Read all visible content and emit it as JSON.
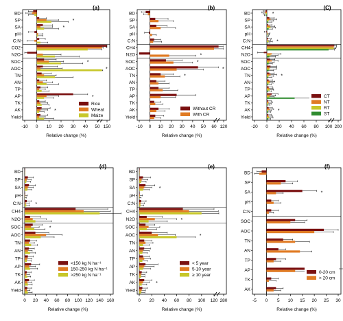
{
  "chart_data": [
    {
      "panel": "(a)",
      "type": "bar",
      "categories": [
        "BD",
        "SP",
        "SA",
        "pH",
        "C:N",
        "CO2",
        "N2O",
        "SOC",
        "AOC",
        "TN",
        "AN",
        "TP",
        "AP",
        "TK",
        "AK",
        "Yield"
      ],
      "series": [
        {
          "name": "Rice",
          "color": "#7a1010",
          "values": [
            -3,
            2,
            5,
            -2,
            2,
            150,
            -8,
            6,
            5,
            4,
            2,
            3,
            30,
            2,
            4,
            3
          ],
          "errors": [
            4,
            6,
            8,
            5,
            5,
            12,
            10,
            10,
            12,
            8,
            6,
            6,
            12,
            5,
            7,
            6
          ]
        },
        {
          "name": "Wheat",
          "color": "#e07b24",
          "values": [
            -4,
            8,
            3,
            1,
            -2,
            60,
            5,
            10,
            3,
            6,
            5,
            2,
            8,
            3,
            3,
            2
          ],
          "errors": [
            5,
            10,
            10,
            4,
            6,
            20,
            15,
            12,
            18,
            10,
            8,
            5,
            10,
            6,
            6,
            5
          ]
        },
        {
          "name": "Maize",
          "color": "#c7c72a",
          "values": [
            -2,
            12,
            6,
            1,
            3,
            42,
            15,
            20,
            58,
            15,
            8,
            4,
            6,
            4,
            2,
            6
          ],
          "errors": [
            5,
            14,
            12,
            4,
            6,
            15,
            20,
            18,
            15,
            15,
            10,
            6,
            8,
            6,
            4,
            8
          ]
        }
      ],
      "xticks": [
        "-10",
        "0",
        "10",
        "20",
        "30",
        "40",
        "50",
        "150"
      ],
      "stars": [
        "SP",
        "SA",
        "CO2",
        "SOC",
        "AOC",
        "AP",
        "AK"
      ]
    },
    {
      "panel": "(b)",
      "type": "bar",
      "categories": [
        "BD",
        "SP",
        "SA",
        "pH",
        "C:N",
        "CH4",
        "N2O",
        "SOC",
        "AOC",
        "TN",
        "AN",
        "TP",
        "AP",
        "TK",
        "AK",
        "Yield"
      ],
      "series": [
        {
          "name": "Without CR",
          "color": "#7a1010",
          "values": [
            -4,
            5,
            6,
            -1,
            4,
            65,
            -20,
            15,
            45,
            10,
            6,
            8,
            25,
            4,
            8,
            5
          ],
          "errors": [
            4,
            12,
            10,
            4,
            6,
            50,
            20,
            15,
            18,
            12,
            8,
            10,
            18,
            6,
            10,
            8
          ]
        },
        {
          "name": "With CR",
          "color": "#e07b24",
          "values": [
            -2,
            8,
            10,
            2,
            3,
            60,
            18,
            22,
            25,
            14,
            8,
            12,
            10,
            5,
            6,
            4
          ],
          "errors": [
            4,
            14,
            14,
            4,
            8,
            55,
            25,
            18,
            25,
            14,
            10,
            14,
            14,
            7,
            8,
            6
          ]
        }
      ],
      "xticks": [
        "-10",
        "0",
        "10",
        "20",
        "30",
        "40",
        "50",
        "60",
        "120"
      ],
      "stars": [
        "N2O",
        "SOC",
        "AOC",
        "TN"
      ]
    },
    {
      "panel": "(C)",
      "type": "bar",
      "categories": [
        "BD",
        "SP",
        "SA",
        "pH",
        "C:N",
        "CH4",
        "N2O",
        "SOC",
        "AOC",
        "TN",
        "AN",
        "TP",
        "AP",
        "TK",
        "AK",
        "Yield"
      ],
      "series": [
        {
          "name": "CT",
          "color": "#7a1010",
          "values": [
            -2,
            4,
            2,
            -1,
            2,
            130,
            -5,
            5,
            6,
            4,
            3,
            3,
            8,
            2,
            3,
            2
          ],
          "errors": [
            4,
            8,
            6,
            3,
            5,
            40,
            10,
            8,
            10,
            8,
            6,
            6,
            10,
            5,
            6,
            5
          ]
        },
        {
          "name": "NT",
          "color": "#e07b24",
          "values": [
            -3,
            6,
            5,
            1,
            1,
            120,
            8,
            8,
            4,
            6,
            5,
            4,
            6,
            3,
            5,
            3
          ],
          "errors": [
            5,
            10,
            8,
            4,
            5,
            45,
            15,
            10,
            12,
            10,
            8,
            6,
            8,
            6,
            6,
            6
          ]
        },
        {
          "name": "RT",
          "color": "#c7c72a",
          "values": [
            -2,
            3,
            6,
            1,
            3,
            118,
            6,
            4,
            5,
            3,
            4,
            5,
            4,
            2,
            2,
            4
          ],
          "errors": [
            4,
            8,
            8,
            3,
            6,
            40,
            12,
            8,
            10,
            8,
            6,
            6,
            8,
            5,
            5,
            6
          ]
        },
        {
          "name": "ST",
          "color": "#2e8b2e",
          "values": [
            -1,
            2,
            3,
            0,
            1,
            100,
            4,
            3,
            3,
            2,
            2,
            2,
            45,
            1,
            2,
            2
          ],
          "errors": [
            3,
            6,
            6,
            3,
            4,
            35,
            10,
            6,
            8,
            6,
            5,
            5,
            25,
            4,
            4,
            4
          ]
        }
      ],
      "xticks": [
        "-20",
        "0",
        "20",
        "40",
        "60",
        "80",
        "100",
        "200"
      ],
      "stars": [
        "BD",
        "C:N",
        "TN",
        "AP",
        "AK"
      ]
    },
    {
      "panel": "(d)",
      "type": "bar",
      "categories": [
        "BD",
        "SP",
        "SA",
        "pH",
        "C:N",
        "CH4",
        "N2O",
        "SOC",
        "AOC",
        "TN",
        "AN",
        "TP",
        "AP",
        "TK",
        "AK",
        "Yield"
      ],
      "series": [
        {
          "name": "<150 kg N ha⁻¹",
          "color": "#7a1010",
          "values": [
            -3,
            6,
            8,
            -2,
            4,
            95,
            10,
            15,
            20,
            10,
            8,
            6,
            12,
            4,
            8,
            5
          ],
          "errors": [
            4,
            10,
            12,
            4,
            8,
            60,
            20,
            18,
            25,
            12,
            10,
            10,
            16,
            8,
            10,
            8
          ]
        },
        {
          "name": "150-250 kg N ha⁻¹",
          "color": "#e07b24",
          "values": [
            -2,
            4,
            6,
            1,
            2,
            110,
            15,
            12,
            40,
            8,
            6,
            5,
            8,
            3,
            5,
            4
          ],
          "errors": [
            4,
            8,
            10,
            4,
            6,
            50,
            25,
            15,
            30,
            10,
            8,
            8,
            12,
            6,
            8,
            6
          ]
        },
        {
          "name": ">250 kg N ha⁻¹",
          "color": "#c7c72a",
          "values": [
            -1,
            3,
            5,
            0,
            3,
            140,
            20,
            18,
            30,
            12,
            10,
            4,
            10,
            5,
            6,
            6
          ],
          "errors": [
            3,
            8,
            8,
            3,
            6,
            40,
            30,
            20,
            25,
            12,
            10,
            8,
            14,
            6,
            8,
            8
          ]
        }
      ],
      "xticks": [
        "0",
        "20",
        "40",
        "60",
        "80",
        "100",
        "120",
        "140",
        "160"
      ],
      "stars": [
        "C:N",
        "SOC"
      ]
    },
    {
      "panel": "(e)",
      "type": "bar",
      "categories": [
        "BD",
        "SP",
        "SA",
        "pH",
        "C:N",
        "CH4",
        "N2O",
        "SOC",
        "AOC",
        "TN",
        "AN",
        "TP",
        "AP",
        "TK",
        "AK",
        "Yield"
      ],
      "series": [
        {
          "name": "< 5 year",
          "color": "#7a1010",
          "values": [
            -3,
            6,
            10,
            -1,
            3,
            70,
            12,
            10,
            20,
            8,
            8,
            6,
            10,
            4,
            8,
            5
          ],
          "errors": [
            4,
            12,
            15,
            4,
            8,
            50,
            25,
            15,
            25,
            12,
            10,
            10,
            20,
            8,
            12,
            8
          ]
        },
        {
          "name": "5-10 year",
          "color": "#e07b24",
          "values": [
            -2,
            4,
            8,
            1,
            2,
            80,
            25,
            15,
            30,
            10,
            6,
            8,
            8,
            3,
            6,
            4
          ],
          "errors": [
            4,
            10,
            12,
            4,
            6,
            45,
            35,
            18,
            28,
            12,
            10,
            10,
            16,
            6,
            10,
            6
          ]
        },
        {
          "name": "≥ 10 year",
          "color": "#c7c72a",
          "values": [
            -1,
            3,
            6,
            0,
            2,
            100,
            15,
            12,
            60,
            6,
            5,
            5,
            6,
            3,
            4,
            3
          ],
          "errors": [
            3,
            8,
            10,
            3,
            5,
            40,
            30,
            16,
            30,
            10,
            8,
            8,
            12,
            6,
            8,
            6
          ]
        }
      ],
      "xticks": [
        "0",
        "20",
        "40",
        "60",
        "80",
        "100",
        "120",
        "280"
      ],
      "stars": [
        "SA",
        "N2O",
        "AOC",
        "AK"
      ]
    },
    {
      "panel": "(f)",
      "type": "bar",
      "categories": [
        "BD",
        "SP",
        "SA",
        "pH",
        "C:N",
        "SOC",
        "AOC",
        "TN",
        "AN",
        "TP",
        "AP",
        "TK",
        "AK"
      ],
      "series": [
        {
          "name": "0-20 cm",
          "color": "#7a1010",
          "values": [
            -2,
            8,
            15,
            2,
            2,
            12,
            24,
            7,
            5,
            4,
            29,
            2,
            4
          ],
          "errors": [
            2,
            5,
            6,
            3,
            3,
            5,
            6,
            4,
            3,
            4,
            6,
            3,
            3
          ]
        },
        {
          "name": "> 20 cm",
          "color": "#e07b24",
          "values": [
            -3,
            6,
            4,
            3,
            1,
            10,
            20,
            12,
            14,
            3,
            12,
            1,
            3
          ],
          "errors": [
            2,
            5,
            3,
            3,
            2,
            6,
            8,
            6,
            5,
            3,
            16,
            3,
            3
          ]
        }
      ],
      "xticks": [
        "-5",
        "0",
        "5",
        "10",
        "15",
        "20",
        "25",
        "30"
      ],
      "stars": [
        "SA"
      ]
    }
  ],
  "xlabel": "Relative change (%)"
}
